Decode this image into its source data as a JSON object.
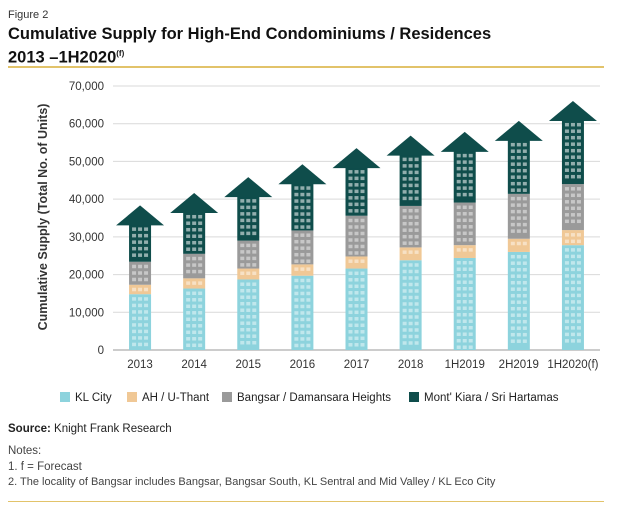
{
  "figure_label": "Figure 2",
  "title_line1": "Cumulative Supply for High-End Condominiums / Residences",
  "title_line2": "2013 –1H2020",
  "title_superscript": "(f)",
  "source_label": "Source:",
  "source_text": " Knight Frank Research",
  "notes_title": "Notes:",
  "notes": [
    "1. f = Forecast",
    "2. The locality of Bangsar includes Bangsar, Bangsar South, KL Sentral and Mid Valley / KL Eco City"
  ],
  "chart_data": {
    "type": "bar",
    "stacked": true,
    "categories": [
      "2013",
      "2014",
      "2015",
      "2016",
      "2017",
      "2018",
      "1H2019",
      "2H2019",
      "1H2020(f)"
    ],
    "series": [
      {
        "name": "KL City",
        "color": "#8dd3dd",
        "values": [
          14800,
          16300,
          18700,
          19700,
          21600,
          23800,
          24400,
          26000,
          27800
        ]
      },
      {
        "name": "AH / U-Thant",
        "color": "#f0c896",
        "values": [
          2500,
          2700,
          2900,
          3000,
          3200,
          3400,
          3400,
          3500,
          4000
        ]
      },
      {
        "name": "Bangsar / Damansara Heights",
        "color": "#9a9a9a",
        "values": [
          6100,
          6500,
          7400,
          9000,
          10800,
          11000,
          11300,
          11900,
          12200
        ]
      },
      {
        "name": "Mont' Kiara / Sri Hartamas",
        "color": "#0f4d4b",
        "values": [
          9900,
          11100,
          11800,
          12500,
          12900,
          13600,
          13700,
          14300,
          17000
        ]
      }
    ],
    "ylabel": "Cumulative Supply (Total No. of Units)",
    "xlabel": "",
    "ylim": [
      0,
      70000
    ],
    "yticks": [
      0,
      10000,
      20000,
      30000,
      40000,
      50000,
      60000,
      70000
    ],
    "ytick_labels": [
      "0",
      "10,000",
      "20,000",
      "30,000",
      "40,000",
      "50,000",
      "60,000",
      "70,000"
    ],
    "grid": true,
    "legend_position": "bottom"
  }
}
